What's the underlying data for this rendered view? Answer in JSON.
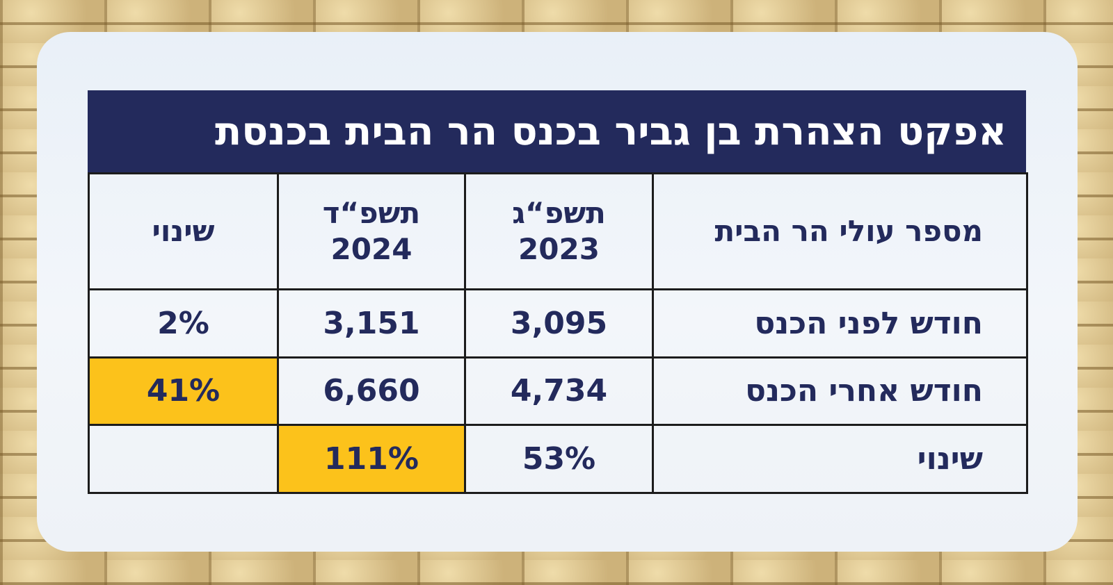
{
  "header": {
    "title": "אפקט הצהרת בן גביר בכנס הר הבית בכנסת"
  },
  "table": {
    "columns": [
      {
        "lines": [
          "מספר עולי הר הבית"
        ]
      },
      {
        "lines": [
          "תשפ“ג",
          "2023"
        ]
      },
      {
        "lines": [
          "תשפ“ד",
          "2024"
        ]
      },
      {
        "lines": [
          "שינוי"
        ]
      }
    ],
    "rows": [
      [
        "חודש לפני הכנס",
        "3,095",
        "3,151",
        "2%"
      ],
      [
        "חודש אחרי הכנס",
        "4,734",
        "6,660",
        "41%"
      ],
      [
        "שינוי",
        "53%",
        "111%"
      ]
    ]
  }
}
